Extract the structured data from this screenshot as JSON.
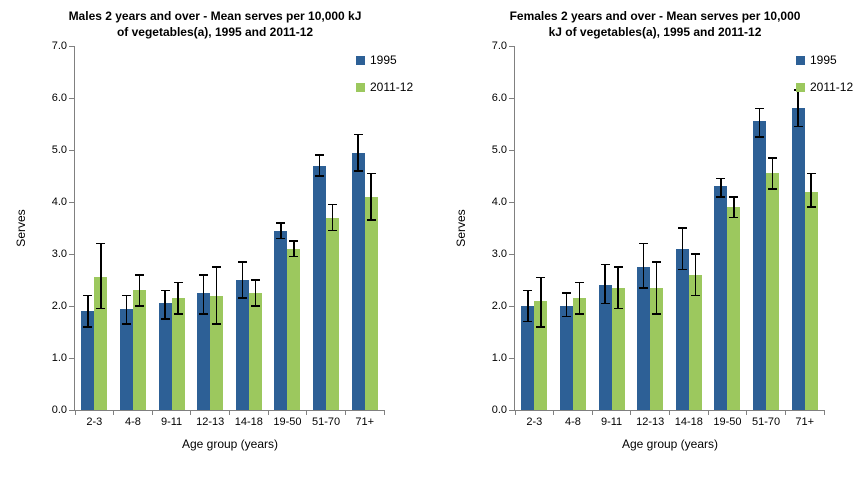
{
  "page": {
    "background": "#ffffff"
  },
  "colors": {
    "series_1995": "#2d6096",
    "series_2011_12": "#9cc85e",
    "axis": "#808080",
    "error_bar": "#000000",
    "text": "#000000"
  },
  "chart_data": [
    {
      "type": "bar",
      "title": "Males 2 years and over - Mean serves per 10,000 kJ of vegetables(a), 1995 and 2011-12",
      "title_lines": [
        "Males 2 years and over - Mean serves per 10,000 kJ",
        "of vegetables(a), 1995 and 2011-12"
      ],
      "xlabel": "Age group (years)",
      "ylabel": "Serves",
      "ylim": [
        0,
        7
      ],
      "ytick_labels": [
        "0.0",
        "1.0",
        "2.0",
        "3.0",
        "4.0",
        "5.0",
        "6.0",
        "7.0"
      ],
      "grid": false,
      "legend_position": "top-right",
      "categories": [
        "2-3",
        "4-8",
        "9-11",
        "12-13",
        "14-18",
        "19-50",
        "51-70",
        "71+"
      ],
      "series": [
        {
          "name": "1995",
          "color": "#2d6096",
          "values": [
            1.9,
            1.95,
            2.05,
            2.25,
            2.5,
            3.45,
            4.7,
            4.95
          ],
          "error_low": [
            1.6,
            1.65,
            1.75,
            1.85,
            2.15,
            3.3,
            4.5,
            4.6
          ],
          "error_high": [
            2.2,
            2.2,
            2.3,
            2.6,
            2.85,
            3.6,
            4.9,
            5.3
          ]
        },
        {
          "name": "2011-12",
          "color": "#9cc85e",
          "values": [
            2.55,
            2.3,
            2.15,
            2.2,
            2.25,
            3.1,
            3.7,
            4.1
          ],
          "error_low": [
            1.95,
            2.0,
            1.85,
            1.65,
            2.0,
            2.95,
            3.45,
            3.65
          ],
          "error_high": [
            3.2,
            2.6,
            2.45,
            2.75,
            2.5,
            3.25,
            3.95,
            4.55
          ]
        }
      ]
    },
    {
      "type": "bar",
      "title": "Females 2 years and over - Mean serves per 10,000 kJ of vegetables(a), 1995 and 2011-12",
      "title_lines": [
        "Females 2 years and over - Mean serves per 10,000",
        "kJ of vegetables(a), 1995 and 2011-12"
      ],
      "xlabel": "Age group (years)",
      "ylabel": "Serves",
      "ylim": [
        0,
        7
      ],
      "ytick_labels": [
        "0.0",
        "1.0",
        "2.0",
        "3.0",
        "4.0",
        "5.0",
        "6.0",
        "7.0"
      ],
      "grid": false,
      "legend_position": "top-right",
      "categories": [
        "2-3",
        "4-8",
        "9-11",
        "12-13",
        "14-18",
        "19-50",
        "51-70",
        "71+"
      ],
      "series": [
        {
          "name": "1995",
          "color": "#2d6096",
          "values": [
            2.0,
            2.0,
            2.4,
            2.75,
            3.1,
            4.3,
            5.55,
            5.8
          ],
          "error_low": [
            1.7,
            1.8,
            2.05,
            2.35,
            2.7,
            4.1,
            5.25,
            5.45
          ],
          "error_high": [
            2.3,
            2.25,
            2.8,
            3.2,
            3.5,
            4.45,
            5.8,
            6.15
          ]
        },
        {
          "name": "2011-12",
          "color": "#9cc85e",
          "values": [
            2.1,
            2.15,
            2.35,
            2.35,
            2.6,
            3.9,
            4.55,
            4.2
          ],
          "error_low": [
            1.6,
            1.85,
            1.95,
            1.85,
            2.2,
            3.7,
            4.25,
            3.9
          ],
          "error_high": [
            2.55,
            2.45,
            2.75,
            2.85,
            3.0,
            4.1,
            4.85,
            4.55
          ]
        }
      ]
    }
  ]
}
